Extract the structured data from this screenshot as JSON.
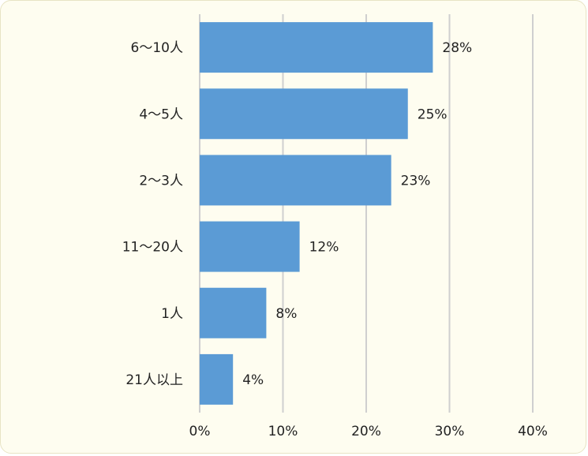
{
  "chart_data": {
    "type": "bar",
    "orientation": "horizontal",
    "categories": [
      "6～10人",
      "4～5人",
      "2～3人",
      "11～20人",
      "1人",
      "21人以上"
    ],
    "values": [
      28,
      25,
      23,
      12,
      8,
      4
    ],
    "data_labels": [
      "28%",
      "25%",
      "23%",
      "12%",
      "8%",
      "4%"
    ],
    "x_ticks": [
      0,
      10,
      20,
      30,
      40
    ],
    "x_tick_labels": [
      "0%",
      "10%",
      "20%",
      "30%",
      "40%"
    ],
    "xlim": [
      0,
      40
    ],
    "unit": "%",
    "title": "",
    "xlabel": "",
    "ylabel": "",
    "grid": "vertical",
    "legend": "none",
    "colors": {
      "bar": "#5b9bd5",
      "background": "#fefdf0",
      "gridline": "#cfcfcf",
      "text": "#222222"
    }
  }
}
